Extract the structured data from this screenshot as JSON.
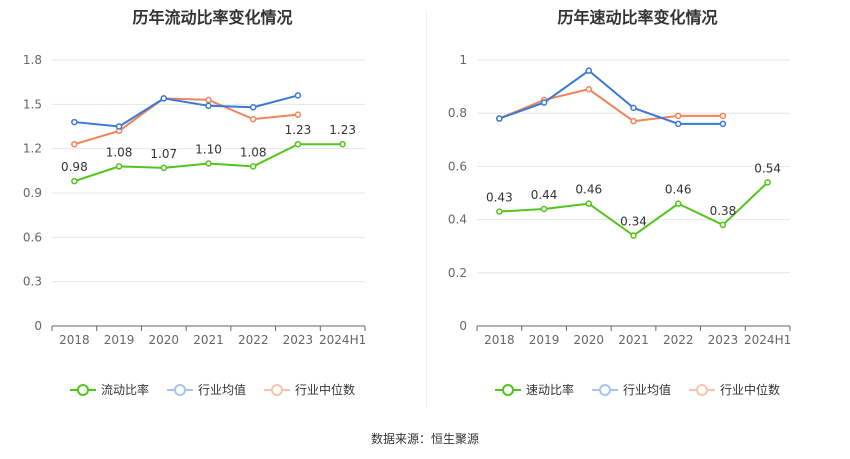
{
  "source_text": "数据来源：恒生聚源",
  "chart_data": [
    {
      "type": "line",
      "title": "历年流动比率变化情况",
      "categories": [
        "2018",
        "2019",
        "2020",
        "2021",
        "2022",
        "2023",
        "2024H1"
      ],
      "yticks": [
        "0",
        "0.3",
        "0.6",
        "0.9",
        "1.2",
        "1.5",
        "1.8"
      ],
      "ylim": [
        0,
        1.8
      ],
      "grid": true,
      "legend_position": "bottom",
      "series": [
        {
          "name": "流动比率",
          "color": "#52c41a",
          "values": [
            0.98,
            1.08,
            1.07,
            1.1,
            1.08,
            1.23,
            1.23
          ],
          "labels": [
            "0.98",
            "1.08",
            "1.07",
            "1.10",
            "1.08",
            "1.23",
            "1.23"
          ]
        },
        {
          "name": "行业均值",
          "color": "#3a78d8",
          "values": [
            1.38,
            1.35,
            1.54,
            1.49,
            1.48,
            1.56,
            null
          ]
        },
        {
          "name": "行业中位数",
          "color": "#f0845a",
          "values": [
            1.23,
            1.32,
            1.54,
            1.53,
            1.4,
            1.43,
            null
          ]
        }
      ]
    },
    {
      "type": "line",
      "title": "历年速动比率变化情况",
      "categories": [
        "2018",
        "2019",
        "2020",
        "2021",
        "2022",
        "2023",
        "2024H1"
      ],
      "yticks": [
        "0",
        "0.2",
        "0.4",
        "0.6",
        "0.8",
        "1"
      ],
      "ylim": [
        0,
        1
      ],
      "grid": true,
      "legend_position": "bottom",
      "series": [
        {
          "name": "速动比率",
          "color": "#52c41a",
          "values": [
            0.43,
            0.44,
            0.46,
            0.34,
            0.46,
            0.38,
            0.54
          ],
          "labels": [
            "0.43",
            "0.44",
            "0.46",
            "0.34",
            "0.46",
            "0.38",
            "0.54"
          ]
        },
        {
          "name": "行业均值",
          "color": "#3a78d8",
          "values": [
            0.78,
            0.84,
            0.96,
            0.82,
            0.76,
            0.76,
            null
          ]
        },
        {
          "name": "行业中位数",
          "color": "#f0845a",
          "values": [
            0.78,
            0.85,
            0.89,
            0.77,
            0.79,
            0.79,
            null
          ]
        }
      ]
    }
  ]
}
